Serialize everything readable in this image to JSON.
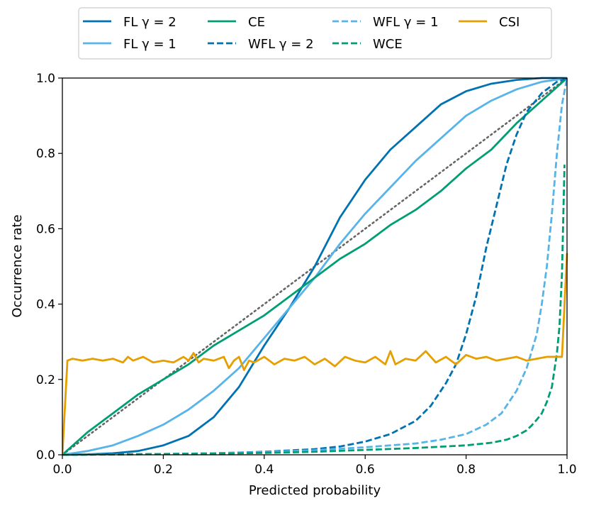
{
  "chart_data": {
    "type": "line",
    "title": "",
    "xlabel": "Predicted probability",
    "ylabel": "Occurrence rate",
    "xlim": [
      0,
      1
    ],
    "ylim": [
      0,
      1
    ],
    "xticks": [
      "0.0",
      "0.2",
      "0.4",
      "0.6",
      "0.8",
      "1.0"
    ],
    "yticks": [
      "0.0",
      "0.2",
      "0.4",
      "0.6",
      "0.8",
      "1.0"
    ],
    "grid": false,
    "legend_position": "top-outside",
    "reference_line": {
      "name": "perfect calibration",
      "x": [
        0,
        1
      ],
      "y": [
        0,
        1
      ],
      "color": "#666666",
      "style": "dotted"
    },
    "series": [
      {
        "name": "FL γ = 2",
        "color": "#0072b2",
        "style": "solid",
        "x": [
          0,
          0.05,
          0.1,
          0.15,
          0.2,
          0.25,
          0.3,
          0.35,
          0.4,
          0.45,
          0.5,
          0.55,
          0.6,
          0.65,
          0.7,
          0.75,
          0.8,
          0.85,
          0.9,
          0.95,
          1.0
        ],
        "y": [
          0,
          0.001,
          0.004,
          0.01,
          0.025,
          0.05,
          0.1,
          0.18,
          0.29,
          0.39,
          0.5,
          0.63,
          0.73,
          0.81,
          0.87,
          0.93,
          0.965,
          0.985,
          0.995,
          1.0,
          1.0
        ]
      },
      {
        "name": "FL γ = 1",
        "color": "#56b4e9",
        "style": "solid",
        "x": [
          0,
          0.05,
          0.1,
          0.15,
          0.2,
          0.25,
          0.3,
          0.35,
          0.4,
          0.45,
          0.5,
          0.55,
          0.6,
          0.65,
          0.7,
          0.75,
          0.8,
          0.85,
          0.9,
          0.95,
          1.0
        ],
        "y": [
          0,
          0.01,
          0.025,
          0.05,
          0.08,
          0.12,
          0.17,
          0.23,
          0.31,
          0.39,
          0.47,
          0.56,
          0.64,
          0.71,
          0.78,
          0.84,
          0.9,
          0.94,
          0.97,
          0.99,
          1.0
        ]
      },
      {
        "name": "CE",
        "color": "#009e73",
        "style": "solid",
        "x": [
          0,
          0.05,
          0.1,
          0.15,
          0.2,
          0.25,
          0.3,
          0.35,
          0.4,
          0.45,
          0.5,
          0.55,
          0.6,
          0.65,
          0.7,
          0.75,
          0.8,
          0.85,
          0.9,
          0.95,
          1.0
        ],
        "y": [
          0,
          0.06,
          0.11,
          0.16,
          0.2,
          0.24,
          0.29,
          0.33,
          0.37,
          0.42,
          0.47,
          0.52,
          0.56,
          0.61,
          0.65,
          0.7,
          0.76,
          0.81,
          0.88,
          0.94,
          1.0
        ]
      },
      {
        "name": "WFL γ = 2",
        "color": "#0072b2",
        "style": "dashed",
        "x": [
          0,
          0.1,
          0.2,
          0.3,
          0.4,
          0.5,
          0.55,
          0.6,
          0.65,
          0.7,
          0.73,
          0.76,
          0.78,
          0.8,
          0.82,
          0.84,
          0.86,
          0.88,
          0.9,
          0.92,
          0.95,
          0.98,
          1.0
        ],
        "y": [
          0,
          0.001,
          0.002,
          0.004,
          0.008,
          0.015,
          0.022,
          0.035,
          0.055,
          0.09,
          0.13,
          0.19,
          0.24,
          0.32,
          0.42,
          0.55,
          0.66,
          0.77,
          0.85,
          0.91,
          0.96,
          0.99,
          1.0
        ]
      },
      {
        "name": "WFL γ = 1",
        "color": "#56b4e9",
        "style": "dashed",
        "x": [
          0,
          0.1,
          0.2,
          0.3,
          0.4,
          0.5,
          0.6,
          0.7,
          0.75,
          0.8,
          0.84,
          0.87,
          0.9,
          0.92,
          0.94,
          0.95,
          0.96,
          0.97,
          0.98,
          0.99,
          1.0
        ],
        "y": [
          0,
          0.001,
          0.002,
          0.004,
          0.007,
          0.012,
          0.02,
          0.03,
          0.04,
          0.055,
          0.08,
          0.11,
          0.17,
          0.23,
          0.32,
          0.4,
          0.5,
          0.64,
          0.8,
          0.93,
          1.0
        ]
      },
      {
        "name": "WCE",
        "color": "#009e73",
        "style": "dashed",
        "x": [
          0,
          0.1,
          0.2,
          0.3,
          0.4,
          0.5,
          0.6,
          0.7,
          0.8,
          0.85,
          0.88,
          0.9,
          0.92,
          0.93,
          0.94,
          0.95,
          0.96,
          0.97,
          0.98,
          0.985,
          0.99,
          0.995
        ],
        "y": [
          0,
          0.001,
          0.002,
          0.003,
          0.005,
          0.008,
          0.013,
          0.018,
          0.025,
          0.032,
          0.04,
          0.05,
          0.065,
          0.078,
          0.093,
          0.11,
          0.14,
          0.18,
          0.27,
          0.34,
          0.48,
          0.77
        ]
      },
      {
        "name": "CSI",
        "color": "#e69f00",
        "style": "solid",
        "x": [
          0,
          0.01,
          0.02,
          0.04,
          0.06,
          0.08,
          0.1,
          0.12,
          0.13,
          0.14,
          0.16,
          0.18,
          0.2,
          0.22,
          0.24,
          0.25,
          0.26,
          0.27,
          0.28,
          0.3,
          0.32,
          0.33,
          0.34,
          0.35,
          0.36,
          0.37,
          0.38,
          0.4,
          0.42,
          0.44,
          0.46,
          0.48,
          0.5,
          0.52,
          0.54,
          0.56,
          0.58,
          0.6,
          0.62,
          0.64,
          0.65,
          0.66,
          0.68,
          0.7,
          0.72,
          0.74,
          0.76,
          0.78,
          0.8,
          0.82,
          0.84,
          0.86,
          0.88,
          0.9,
          0.92,
          0.94,
          0.96,
          0.98,
          0.99,
          1.0
        ],
        "y": [
          0,
          0.25,
          0.255,
          0.25,
          0.255,
          0.25,
          0.255,
          0.245,
          0.26,
          0.25,
          0.26,
          0.245,
          0.25,
          0.245,
          0.26,
          0.25,
          0.27,
          0.245,
          0.255,
          0.25,
          0.26,
          0.23,
          0.25,
          0.26,
          0.225,
          0.25,
          0.245,
          0.26,
          0.24,
          0.255,
          0.25,
          0.26,
          0.24,
          0.255,
          0.235,
          0.26,
          0.25,
          0.245,
          0.26,
          0.24,
          0.275,
          0.24,
          0.255,
          0.25,
          0.275,
          0.245,
          0.26,
          0.24,
          0.265,
          0.255,
          0.26,
          0.25,
          0.255,
          0.26,
          0.25,
          0.255,
          0.26,
          0.26,
          0.26,
          0.535
        ]
      }
    ]
  }
}
